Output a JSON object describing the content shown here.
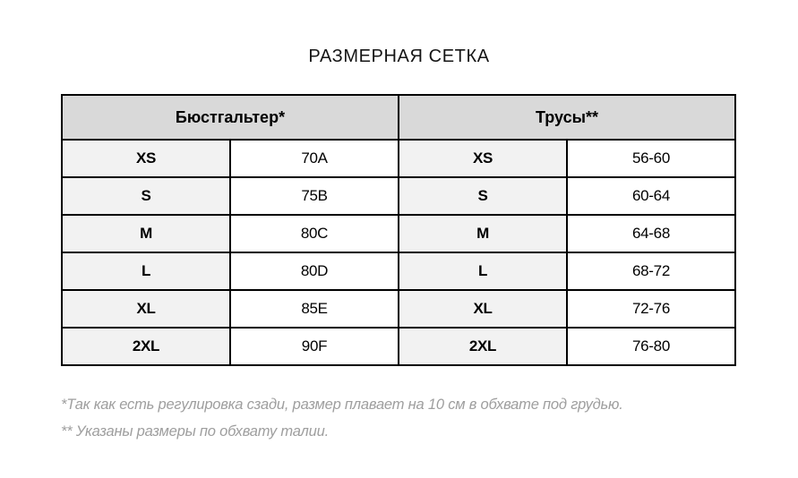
{
  "title": "РАЗМЕРНАЯ СЕТКА",
  "table": {
    "group_headers": [
      {
        "label": "Бюстгальтер*"
      },
      {
        "label": "Трусы**"
      }
    ],
    "rows": [
      {
        "bra_size": "XS",
        "bra_value": "70A",
        "panty_size": "XS",
        "panty_value": "56-60"
      },
      {
        "bra_size": "S",
        "bra_value": "75B",
        "panty_size": "S",
        "panty_value": "60-64"
      },
      {
        "bra_size": "M",
        "bra_value": "80C",
        "panty_size": "M",
        "panty_value": "64-68"
      },
      {
        "bra_size": "L",
        "bra_value": "80D",
        "panty_size": "L",
        "panty_value": "68-72"
      },
      {
        "bra_size": "XL",
        "bra_value": "85E",
        "panty_size": "XL",
        "panty_value": "72-76"
      },
      {
        "bra_size": "2XL",
        "bra_value": "90F",
        "panty_size": "2XL",
        "panty_value": "76-80"
      }
    ]
  },
  "footnotes": [
    "*Так как есть регулировка сзади, размер плавает на 10 см в обхвате под грудью.",
    "** Указаны размеры по обхвату талии."
  ],
  "colors": {
    "header_background": "#d9d9d9",
    "size_cell_background": "#f2f2f2",
    "value_cell_background": "#ffffff",
    "border": "#000000",
    "footnote_text": "#9e9e9e",
    "title_text": "#151515"
  }
}
